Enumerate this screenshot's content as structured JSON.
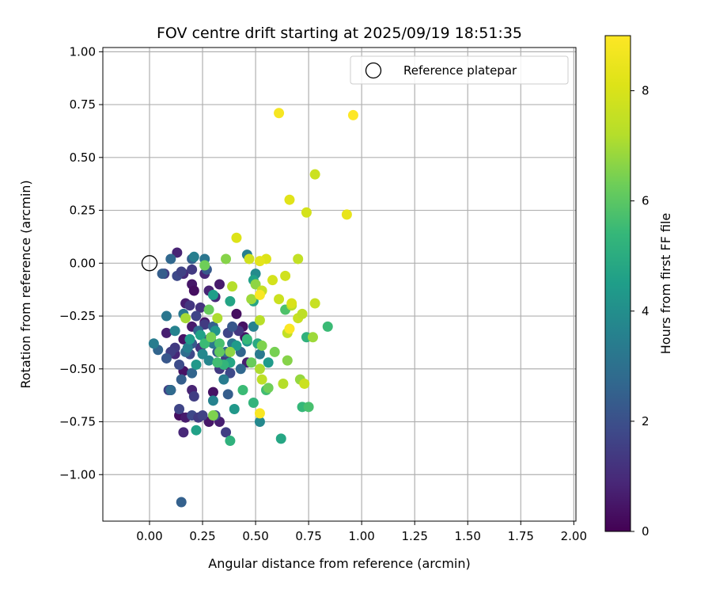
{
  "chart_data": {
    "type": "scatter",
    "title": "FOV centre drift starting at 2025/09/19 18:51:35",
    "xlabel": "Angular distance from reference (arcmin)",
    "ylabel": "Rotation from reference (arcmin)",
    "xlim": [
      -0.22,
      2.01
    ],
    "ylim": [
      -1.22,
      1.02
    ],
    "grid": true,
    "xticks": [
      0.0,
      0.25,
      0.5,
      0.75,
      1.0,
      1.25,
      1.5,
      1.75,
      2.0
    ],
    "xtick_labels": [
      "0.00",
      "0.25",
      "0.50",
      "0.75",
      "1.00",
      "1.25",
      "1.50",
      "1.75",
      "2.00"
    ],
    "yticks": [
      1.0,
      0.75,
      0.5,
      0.25,
      0.0,
      -0.25,
      -0.5,
      -0.75,
      -1.0
    ],
    "ytick_labels": [
      "1.00",
      "0.75",
      "0.50",
      "0.25",
      "0.00",
      "−0.25",
      "−0.50",
      "−0.75",
      "−1.00"
    ],
    "legend": {
      "placement": "top-right",
      "entries": [
        {
          "label": "Reference platepar",
          "marker": "open-circle",
          "x": 0.0,
          "y": 0.0
        }
      ]
    },
    "colorbar": {
      "label": "Hours from first FF file",
      "colormap": "viridis",
      "range": [
        0,
        9
      ],
      "ticks": [
        0,
        2,
        4,
        6,
        8
      ],
      "tick_labels": [
        "0",
        "2",
        "4",
        "6",
        "8"
      ]
    },
    "points": [
      {
        "x": 0.13,
        "y": 0.05,
        "h": 0.8
      },
      {
        "x": 0.16,
        "y": -0.05,
        "h": 1.0
      },
      {
        "x": 0.2,
        "y": -0.1,
        "h": 0.5
      },
      {
        "x": 0.21,
        "y": -0.13,
        "h": 0.3
      },
      {
        "x": 0.17,
        "y": -0.19,
        "h": 0.7
      },
      {
        "x": 0.26,
        "y": -0.05,
        "h": 0.9
      },
      {
        "x": 0.28,
        "y": -0.13,
        "h": 0.8
      },
      {
        "x": 0.33,
        "y": -0.1,
        "h": 0.6
      },
      {
        "x": 0.26,
        "y": -0.28,
        "h": 0.5
      },
      {
        "x": 0.2,
        "y": -0.3,
        "h": 0.6
      },
      {
        "x": 0.16,
        "y": -0.36,
        "h": 0.4
      },
      {
        "x": 0.08,
        "y": -0.33,
        "h": 0.7
      },
      {
        "x": 0.12,
        "y": -0.43,
        "h": 0.9
      },
      {
        "x": 0.16,
        "y": -0.51,
        "h": 0.4
      },
      {
        "x": 0.1,
        "y": -0.6,
        "h": 0.6
      },
      {
        "x": 0.2,
        "y": -0.6,
        "h": 0.8
      },
      {
        "x": 0.14,
        "y": -0.72,
        "h": 0.3
      },
      {
        "x": 0.17,
        "y": -0.73,
        "h": 0.6
      },
      {
        "x": 0.28,
        "y": -0.75,
        "h": 0.5
      },
      {
        "x": 0.33,
        "y": -0.75,
        "h": 0.7
      },
      {
        "x": 0.16,
        "y": -0.8,
        "h": 0.9
      },
      {
        "x": 0.3,
        "y": -0.61,
        "h": 0.4
      },
      {
        "x": 0.36,
        "y": -0.48,
        "h": 0.6
      },
      {
        "x": 0.44,
        "y": -0.3,
        "h": 0.4
      },
      {
        "x": 0.45,
        "y": -0.35,
        "h": 0.5
      },
      {
        "x": 0.46,
        "y": -0.47,
        "h": 0.7
      },
      {
        "x": 0.41,
        "y": -0.24,
        "h": 0.3
      },
      {
        "x": 0.31,
        "y": -0.16,
        "h": 0.9
      },
      {
        "x": 0.07,
        "y": -0.05,
        "h": 1.5
      },
      {
        "x": 0.13,
        "y": -0.06,
        "h": 1.8
      },
      {
        "x": 0.15,
        "y": -0.04,
        "h": 1.6
      },
      {
        "x": 0.2,
        "y": -0.03,
        "h": 1.4
      },
      {
        "x": 0.19,
        "y": -0.2,
        "h": 1.3
      },
      {
        "x": 0.24,
        "y": -0.21,
        "h": 1.2
      },
      {
        "x": 0.22,
        "y": -0.25,
        "h": 1.7
      },
      {
        "x": 0.26,
        "y": -0.29,
        "h": 1.4
      },
      {
        "x": 0.28,
        "y": -0.36,
        "h": 1.6
      },
      {
        "x": 0.24,
        "y": -0.4,
        "h": 1.2
      },
      {
        "x": 0.19,
        "y": -0.43,
        "h": 1.8
      },
      {
        "x": 0.12,
        "y": -0.4,
        "h": 1.4
      },
      {
        "x": 0.1,
        "y": -0.42,
        "h": 1.5
      },
      {
        "x": 0.14,
        "y": -0.48,
        "h": 1.9
      },
      {
        "x": 0.09,
        "y": -0.6,
        "h": 1.6
      },
      {
        "x": 0.1,
        "y": -0.6,
        "h": 1.3
      },
      {
        "x": 0.14,
        "y": -0.69,
        "h": 1.7
      },
      {
        "x": 0.21,
        "y": -0.63,
        "h": 1.5
      },
      {
        "x": 0.2,
        "y": -0.72,
        "h": 1.8
      },
      {
        "x": 0.23,
        "y": -0.73,
        "h": 1.4
      },
      {
        "x": 0.25,
        "y": -0.72,
        "h": 1.6
      },
      {
        "x": 0.31,
        "y": -0.72,
        "h": 1.9
      },
      {
        "x": 0.36,
        "y": -0.8,
        "h": 1.5
      },
      {
        "x": 0.33,
        "y": -0.5,
        "h": 1.4
      },
      {
        "x": 0.38,
        "y": -0.52,
        "h": 1.8
      },
      {
        "x": 0.36,
        "y": -0.45,
        "h": 1.5
      },
      {
        "x": 0.37,
        "y": -0.33,
        "h": 1.7
      },
      {
        "x": 0.42,
        "y": -0.32,
        "h": 1.3
      },
      {
        "x": 0.06,
        "y": -0.05,
        "h": 2.4
      },
      {
        "x": 0.1,
        "y": 0.02,
        "h": 2.7
      },
      {
        "x": 0.2,
        "y": 0.02,
        "h": 2.5
      },
      {
        "x": 0.27,
        "y": -0.03,
        "h": 2.3
      },
      {
        "x": 0.04,
        "y": -0.41,
        "h": 2.6
      },
      {
        "x": 0.08,
        "y": -0.45,
        "h": 2.2
      },
      {
        "x": 0.1,
        "y": -0.6,
        "h": 2.8
      },
      {
        "x": 0.15,
        "y": -0.55,
        "h": 2.4
      },
      {
        "x": 0.15,
        "y": -1.13,
        "h": 2.5
      },
      {
        "x": 0.2,
        "y": -0.52,
        "h": 2.6
      },
      {
        "x": 0.17,
        "y": -0.42,
        "h": 2.9
      },
      {
        "x": 0.2,
        "y": -0.38,
        "h": 2.3
      },
      {
        "x": 0.23,
        "y": -0.32,
        "h": 2.7
      },
      {
        "x": 0.3,
        "y": -0.3,
        "h": 2.5
      },
      {
        "x": 0.32,
        "y": -0.42,
        "h": 2.3
      },
      {
        "x": 0.36,
        "y": -0.42,
        "h": 2.8
      },
      {
        "x": 0.39,
        "y": -0.3,
        "h": 2.2
      },
      {
        "x": 0.43,
        "y": -0.42,
        "h": 2.6
      },
      {
        "x": 0.37,
        "y": -0.62,
        "h": 2.4
      },
      {
        "x": 0.43,
        "y": -0.5,
        "h": 2.7
      },
      {
        "x": 0.02,
        "y": -0.38,
        "h": 3.4
      },
      {
        "x": 0.08,
        "y": -0.25,
        "h": 3.2
      },
      {
        "x": 0.12,
        "y": -0.32,
        "h": 3.6
      },
      {
        "x": 0.16,
        "y": -0.24,
        "h": 3.3
      },
      {
        "x": 0.21,
        "y": 0.03,
        "h": 3.5
      },
      {
        "x": 0.26,
        "y": 0.02,
        "h": 3.2
      },
      {
        "x": 0.18,
        "y": -0.4,
        "h": 3.5
      },
      {
        "x": 0.25,
        "y": -0.43,
        "h": 3.8
      },
      {
        "x": 0.3,
        "y": -0.38,
        "h": 3.3
      },
      {
        "x": 0.28,
        "y": -0.46,
        "h": 3.7
      },
      {
        "x": 0.35,
        "y": -0.55,
        "h": 3.4
      },
      {
        "x": 0.3,
        "y": -0.65,
        "h": 3.6
      },
      {
        "x": 0.39,
        "y": -0.38,
        "h": 3.2
      },
      {
        "x": 0.46,
        "y": 0.04,
        "h": 3.5
      },
      {
        "x": 0.5,
        "y": -0.05,
        "h": 3.9
      },
      {
        "x": 0.49,
        "y": -0.3,
        "h": 3.6
      },
      {
        "x": 0.52,
        "y": -0.43,
        "h": 3.3
      },
      {
        "x": 0.52,
        "y": -0.75,
        "h": 3.8
      },
      {
        "x": 0.22,
        "y": -0.48,
        "h": 4.3
      },
      {
        "x": 0.19,
        "y": -0.36,
        "h": 4.4
      },
      {
        "x": 0.24,
        "y": -0.34,
        "h": 4.6
      },
      {
        "x": 0.31,
        "y": -0.32,
        "h": 4.2
      },
      {
        "x": 0.3,
        "y": -0.15,
        "h": 4.5
      },
      {
        "x": 0.38,
        "y": -0.18,
        "h": 4.7
      },
      {
        "x": 0.4,
        "y": -0.69,
        "h": 4.3
      },
      {
        "x": 0.22,
        "y": -0.79,
        "h": 4.6
      },
      {
        "x": 0.38,
        "y": -0.47,
        "h": 4.8
      },
      {
        "x": 0.41,
        "y": -0.39,
        "h": 4.4
      },
      {
        "x": 0.46,
        "y": -0.37,
        "h": 4.2
      },
      {
        "x": 0.51,
        "y": -0.38,
        "h": 4.9
      },
      {
        "x": 0.49,
        "y": -0.08,
        "h": 4.6
      },
      {
        "x": 0.49,
        "y": -0.18,
        "h": 4.7
      },
      {
        "x": 0.56,
        "y": -0.47,
        "h": 4.4
      },
      {
        "x": 0.62,
        "y": -0.83,
        "h": 4.8
      },
      {
        "x": 0.38,
        "y": -0.84,
        "h": 5.2
      },
      {
        "x": 0.44,
        "y": -0.6,
        "h": 5.5
      },
      {
        "x": 0.49,
        "y": -0.66,
        "h": 5.3
      },
      {
        "x": 0.55,
        "y": -0.6,
        "h": 5.6
      },
      {
        "x": 0.72,
        "y": -0.68,
        "h": 5.4
      },
      {
        "x": 0.75,
        "y": -0.68,
        "h": 5.7
      },
      {
        "x": 0.84,
        "y": -0.3,
        "h": 5.5
      },
      {
        "x": 0.74,
        "y": -0.35,
        "h": 5.2
      },
      {
        "x": 0.64,
        "y": -0.22,
        "h": 5.8
      },
      {
        "x": 0.35,
        "y": -0.48,
        "h": 5.3
      },
      {
        "x": 0.32,
        "y": -0.47,
        "h": 5.6
      },
      {
        "x": 0.46,
        "y": -0.36,
        "h": 5.4
      },
      {
        "x": 0.33,
        "y": -0.38,
        "h": 5.7
      },
      {
        "x": 0.26,
        "y": -0.38,
        "h": 5.5
      },
      {
        "x": 0.28,
        "y": -0.22,
        "h": 6.2
      },
      {
        "x": 0.29,
        "y": -0.35,
        "h": 6.4
      },
      {
        "x": 0.26,
        "y": -0.01,
        "h": 6.3
      },
      {
        "x": 0.36,
        "y": 0.02,
        "h": 6.6
      },
      {
        "x": 0.33,
        "y": -0.42,
        "h": 6.1
      },
      {
        "x": 0.3,
        "y": -0.72,
        "h": 6.5
      },
      {
        "x": 0.38,
        "y": -0.42,
        "h": 6.7
      },
      {
        "x": 0.48,
        "y": -0.47,
        "h": 6.2
      },
      {
        "x": 0.53,
        "y": -0.39,
        "h": 6.5
      },
      {
        "x": 0.56,
        "y": -0.59,
        "h": 6.3
      },
      {
        "x": 0.65,
        "y": -0.46,
        "h": 6.6
      },
      {
        "x": 0.71,
        "y": -0.55,
        "h": 6.8
      },
      {
        "x": 0.77,
        "y": -0.35,
        "h": 6.9
      },
      {
        "x": 0.59,
        "y": -0.42,
        "h": 6.4
      },
      {
        "x": 0.5,
        "y": -0.1,
        "h": 6.7
      },
      {
        "x": 0.48,
        "y": -0.17,
        "h": 6.9
      },
      {
        "x": 0.17,
        "y": -0.26,
        "h": 7.0
      },
      {
        "x": 0.32,
        "y": -0.26,
        "h": 7.1
      },
      {
        "x": 0.39,
        "y": -0.11,
        "h": 7.2
      },
      {
        "x": 0.52,
        "y": -0.27,
        "h": 7.3
      },
      {
        "x": 0.52,
        "y": -0.5,
        "h": 7.1
      },
      {
        "x": 0.53,
        "y": -0.55,
        "h": 7.4
      },
      {
        "x": 0.63,
        "y": -0.57,
        "h": 7.2
      },
      {
        "x": 0.65,
        "y": -0.33,
        "h": 7.5
      },
      {
        "x": 0.67,
        "y": -0.2,
        "h": 7.3
      },
      {
        "x": 0.7,
        "y": -0.26,
        "h": 7.6
      },
      {
        "x": 0.72,
        "y": -0.24,
        "h": 7.4
      },
      {
        "x": 0.73,
        "y": -0.57,
        "h": 7.7
      },
      {
        "x": 0.7,
        "y": 0.02,
        "h": 7.5
      },
      {
        "x": 0.47,
        "y": 0.02,
        "h": 7.8
      },
      {
        "x": 0.53,
        "y": -0.13,
        "h": 7.6
      },
      {
        "x": 0.58,
        "y": -0.08,
        "h": 7.9
      },
      {
        "x": 0.61,
        "y": -0.17,
        "h": 7.7
      },
      {
        "x": 0.64,
        "y": -0.06,
        "h": 7.8
      },
      {
        "x": 0.67,
        "y": -0.19,
        "h": 8.0
      },
      {
        "x": 0.78,
        "y": -0.19,
        "h": 7.6
      },
      {
        "x": 0.78,
        "y": 0.42,
        "h": 7.7
      },
      {
        "x": 0.74,
        "y": 0.24,
        "h": 7.9
      },
      {
        "x": 0.41,
        "y": 0.12,
        "h": 8.1
      },
      {
        "x": 0.66,
        "y": 0.3,
        "h": 8.2
      },
      {
        "x": 0.55,
        "y": 0.02,
        "h": 8.1
      },
      {
        "x": 0.52,
        "y": 0.01,
        "h": 8.3
      },
      {
        "x": 0.93,
        "y": 0.23,
        "h": 8.4
      },
      {
        "x": 0.61,
        "y": 0.71,
        "h": 8.8
      },
      {
        "x": 0.96,
        "y": 0.7,
        "h": 9.0
      },
      {
        "x": 0.52,
        "y": -0.15,
        "h": 8.9
      },
      {
        "x": 0.66,
        "y": -0.31,
        "h": 8.95
      },
      {
        "x": 0.52,
        "y": -0.71,
        "h": 8.85
      }
    ]
  }
}
